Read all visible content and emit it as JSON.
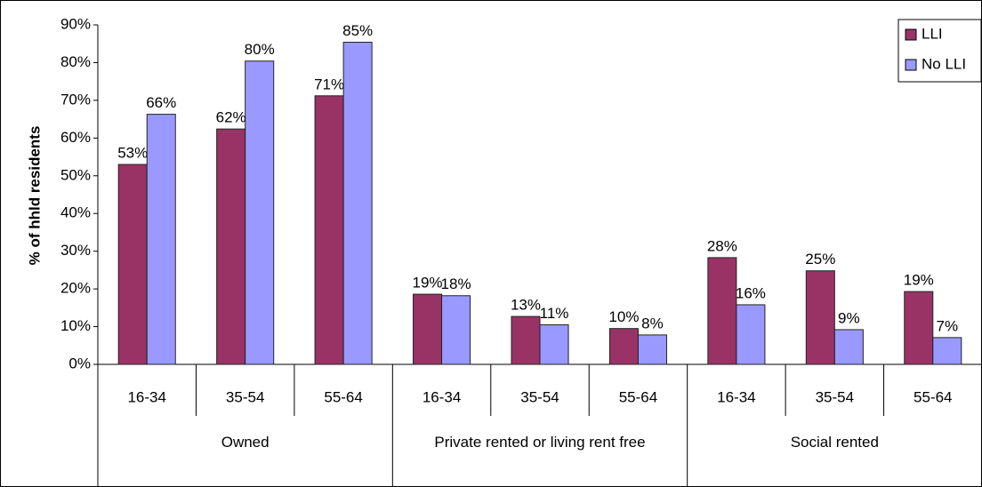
{
  "chart_data": {
    "type": "bar",
    "y_label": "% of hhld residents",
    "categories": [
      "16-34",
      "35-54",
      "55-64",
      "16-34",
      "35-54",
      "55-64",
      "16-34",
      "35-54",
      "55-64"
    ],
    "groups": [
      "Owned",
      "Private rented or living rent free",
      "Social rented"
    ],
    "series": [
      {
        "name": "LLI",
        "color": "#993366",
        "values": [
          53,
          62.4,
          71.2,
          18.6,
          12.7,
          9.5,
          28.3,
          24.8,
          19.3
        ],
        "value_labels": [
          "53%",
          "62%",
          "71%",
          "19%",
          "13%",
          "10%",
          "28%",
          "25%",
          "19%"
        ]
      },
      {
        "name": "No LLI",
        "color": "#9999ff",
        "values": [
          66.3,
          80.4,
          85.4,
          18.2,
          10.5,
          7.8,
          15.8,
          9.2,
          7.1
        ],
        "value_labels": [
          "66%",
          "80%",
          "85%",
          "18%",
          "11%",
          "8%",
          "16%",
          "9%",
          "7%"
        ]
      }
    ],
    "ylim": [
      0,
      90
    ],
    "yticks": [
      {
        "value": 0,
        "label": "0%"
      },
      {
        "value": 10,
        "label": "10%"
      },
      {
        "value": 20,
        "label": "20%"
      },
      {
        "value": 30,
        "label": "30%"
      },
      {
        "value": 40,
        "label": "40%"
      },
      {
        "value": 50,
        "label": "50%"
      },
      {
        "value": 60,
        "label": "60%"
      },
      {
        "value": 70,
        "label": "70%"
      },
      {
        "value": 80,
        "label": "80%"
      },
      {
        "value": 90,
        "label": "90%"
      }
    ],
    "legend": "top-right"
  }
}
